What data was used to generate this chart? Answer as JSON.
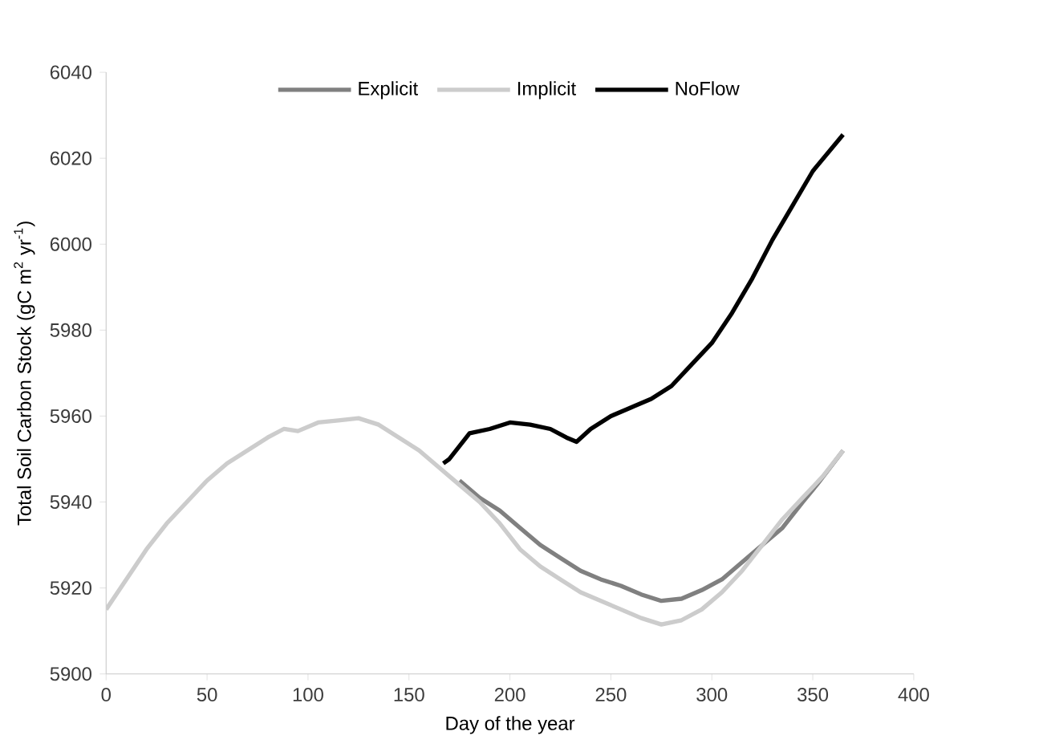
{
  "chart_data": {
    "type": "line",
    "xlabel": "Day of the year",
    "ylabel": "Total Soil Carbon Stock (gC m$^{2}$ yr$^{-1}$)",
    "xlim": [
      0,
      400
    ],
    "xticks": [
      0,
      50,
      100,
      150,
      200,
      250,
      300,
      350,
      400
    ],
    "ylim": [
      5900,
      6040
    ],
    "yticks": [
      5900,
      5920,
      5940,
      5960,
      5980,
      6000,
      6020,
      6040
    ],
    "grid": false,
    "legend": "top",
    "marker": "none",
    "line_style": "solid",
    "series": [
      {
        "name": "Explicit",
        "color": "#808080",
        "x": [
          175,
          185,
          195,
          205,
          215,
          225,
          235,
          245,
          255,
          265,
          275,
          285,
          295,
          305,
          315,
          325,
          335,
          345,
          352,
          365
        ],
        "values": [
          5945,
          5941,
          5938,
          5934,
          5930,
          5927,
          5924,
          5922,
          5920.5,
          5918.5,
          5917,
          5917.5,
          5919.5,
          5922,
          5926,
          5930,
          5934,
          5940,
          5944,
          5952
        ]
      },
      {
        "name": "Implicit",
        "color": "#cccccc",
        "x": [
          0,
          10,
          20,
          30,
          40,
          50,
          60,
          70,
          80,
          88,
          95,
          105,
          115,
          125,
          135,
          145,
          155,
          165,
          175,
          185,
          195,
          205,
          215,
          225,
          235,
          245,
          255,
          265,
          275,
          285,
          295,
          305,
          315,
          325,
          335,
          345,
          355,
          365
        ],
        "values": [
          5915,
          5922,
          5929,
          5935,
          5940,
          5945,
          5949,
          5952,
          5955,
          5957,
          5956.5,
          5958.5,
          5959,
          5959.5,
          5958,
          5955,
          5952,
          5948,
          5944,
          5940,
          5935,
          5929,
          5925,
          5922,
          5919,
          5917,
          5915,
          5913,
          5911.5,
          5912.5,
          5915,
          5919,
          5924,
          5930,
          5936,
          5941,
          5946,
          5952
        ]
      },
      {
        "name": "NoFlow",
        "color": "#000000",
        "x": [
          167,
          170,
          175,
          180,
          190,
          200,
          210,
          220,
          228,
          233,
          240,
          250,
          260,
          270,
          280,
          290,
          300,
          310,
          320,
          330,
          340,
          350,
          365
        ],
        "values": [
          5949,
          5950,
          5953,
          5956,
          5957,
          5958.5,
          5958,
          5957,
          5955,
          5954,
          5957,
          5960,
          5962,
          5964,
          5967,
          5972,
          5977,
          5984,
          5992,
          6001,
          6009,
          6017,
          6025.5
        ]
      }
    ]
  }
}
